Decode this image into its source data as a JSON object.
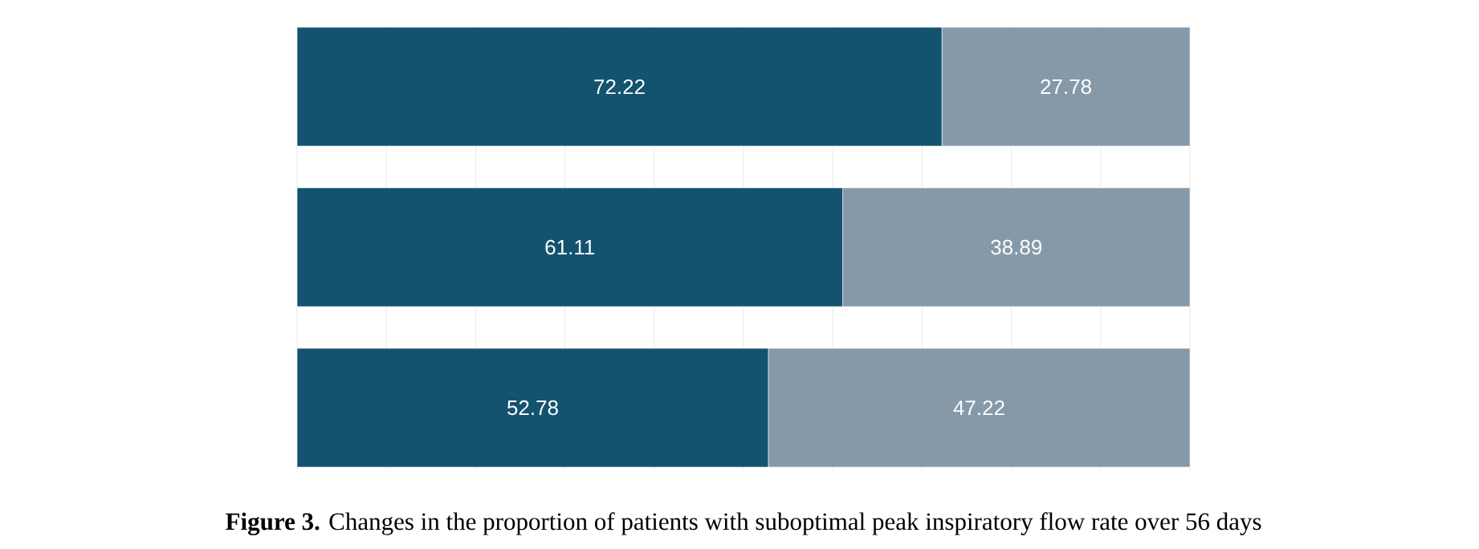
{
  "chart_data": {
    "type": "bar",
    "orientation": "horizontal",
    "stacked": true,
    "categories": [
      null,
      null,
      null
    ],
    "series": [
      {
        "color": "#13536f",
        "values": [
          72.22,
          61.11,
          52.78
        ]
      },
      {
        "color": "#8699a9",
        "values": [
          27.78,
          38.89,
          47.22
        ]
      }
    ],
    "tick_labels": false,
    "grid": "x",
    "data_labels": true,
    "annotations": [
      "**Figure 3.** Changes in the proportion of patients with suboptimal peak inspiratory flow rate over 56 days"
    ]
  }
}
